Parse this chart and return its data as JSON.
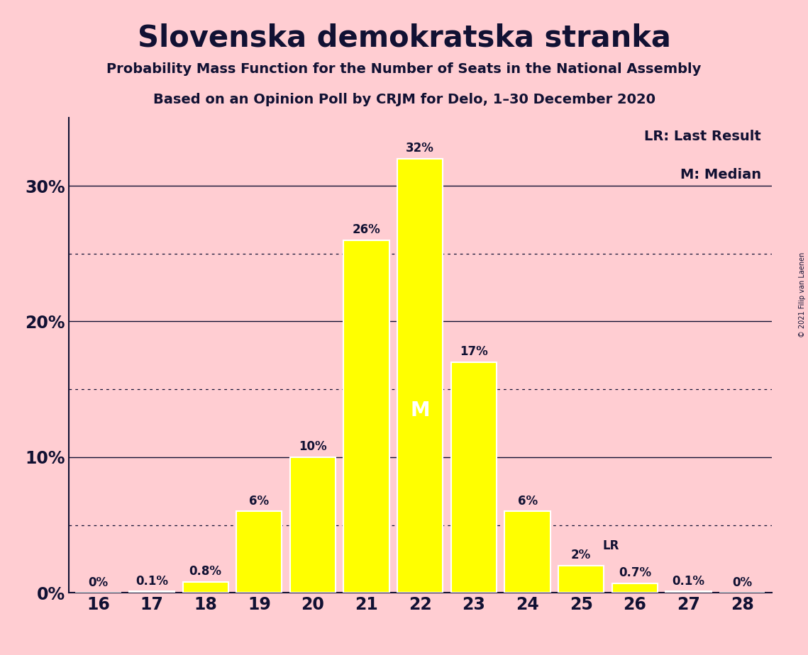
{
  "title": "Slovenska demokratska stranka",
  "subtitle1": "Probability Mass Function for the Number of Seats in the National Assembly",
  "subtitle2": "Based on an Opinion Poll by CRJM for Delo, 1–30 December 2020",
  "copyright": "© 2021 Filip van Laenen",
  "categories": [
    16,
    17,
    18,
    19,
    20,
    21,
    22,
    23,
    24,
    25,
    26,
    27,
    28
  ],
  "values": [
    0.0,
    0.1,
    0.8,
    6.0,
    10.0,
    26.0,
    32.0,
    17.0,
    6.0,
    2.0,
    0.7,
    0.1,
    0.0
  ],
  "bar_color": "#FFFF00",
  "bar_edge_color": "#FFFFFF",
  "background_color": "#FFCDD2",
  "text_color": "#111133",
  "ylim": [
    0,
    35
  ],
  "median_seat": 22,
  "lr_seat": 25,
  "lr_label": "LR",
  "median_label": "M",
  "legend_lr": "LR: Last Result",
  "legend_m": "M: Median",
  "bar_labels": [
    "0%",
    "0.1%",
    "0.8%",
    "6%",
    "10%",
    "26%",
    "32%",
    "17%",
    "6%",
    "2%",
    "0.7%",
    "0.1%",
    "0%"
  ],
  "solid_lines": [
    10,
    20,
    30
  ],
  "dotted_lines": [
    5,
    15,
    25
  ],
  "ytick_positions": [
    0,
    10,
    20,
    30
  ],
  "ytick_labels": [
    "0%",
    "10%",
    "20%",
    "30%"
  ]
}
